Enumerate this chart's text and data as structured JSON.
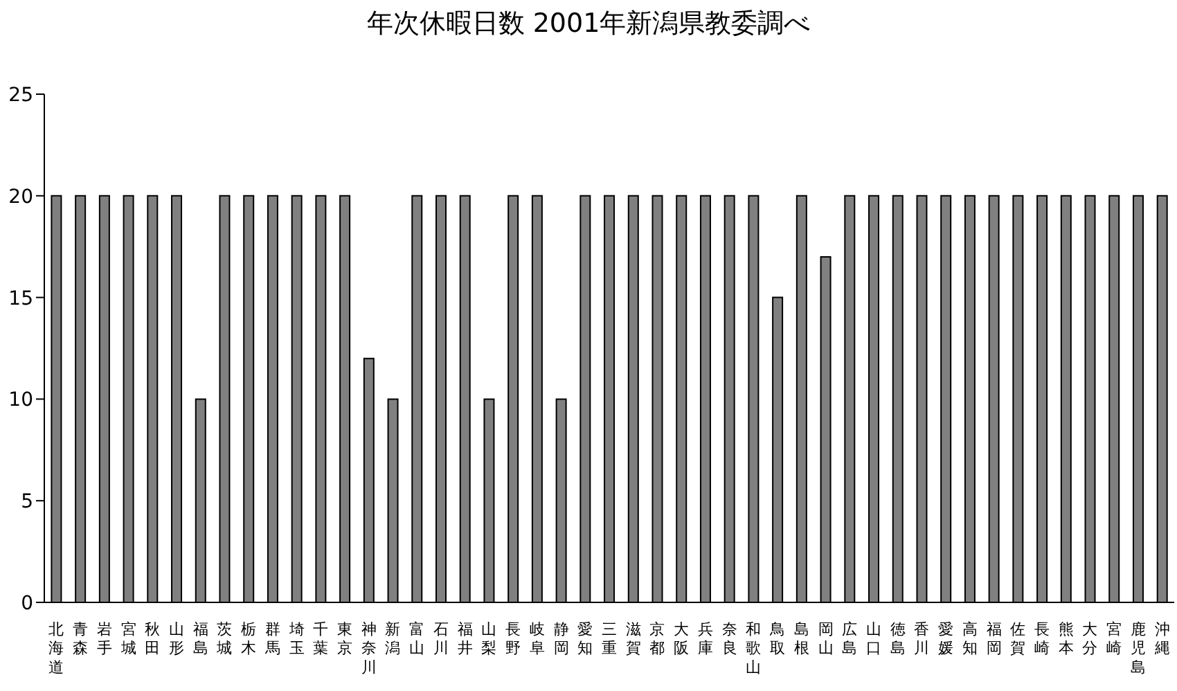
{
  "chart_data": {
    "type": "bar",
    "title": "年次休暇日数 2001年新潟県教委調べ",
    "categories": [
      "北海道",
      "青森",
      "岩手",
      "宮城",
      "秋田",
      "山形",
      "福島",
      "茨城",
      "栃木",
      "群馬",
      "埼玉",
      "千葉",
      "東京",
      "神奈川",
      "新潟",
      "富山",
      "石川",
      "福井",
      "山梨",
      "長野",
      "岐阜",
      "静岡",
      "愛知",
      "三重",
      "滋賀",
      "京都",
      "大阪",
      "兵庫",
      "奈良",
      "和歌山",
      "鳥取",
      "島根",
      "岡山",
      "広島",
      "山口",
      "徳島",
      "香川",
      "愛媛",
      "高知",
      "福岡",
      "佐賀",
      "長崎",
      "熊本",
      "大分",
      "宮崎",
      "鹿児島",
      "沖縄"
    ],
    "values": [
      20,
      20,
      20,
      20,
      20,
      20,
      10,
      20,
      20,
      20,
      20,
      20,
      20,
      12,
      10,
      20,
      20,
      20,
      10,
      20,
      20,
      10,
      20,
      20,
      20,
      20,
      20,
      20,
      20,
      20,
      15,
      20,
      17,
      20,
      20,
      20,
      20,
      20,
      20,
      20,
      20,
      20,
      20,
      20,
      20,
      20,
      20
    ],
    "color": "#808080",
    "ylim": [
      0,
      25
    ],
    "yticks": [
      0,
      5,
      10,
      15,
      20,
      25
    ],
    "grid": false,
    "legend": false
  }
}
